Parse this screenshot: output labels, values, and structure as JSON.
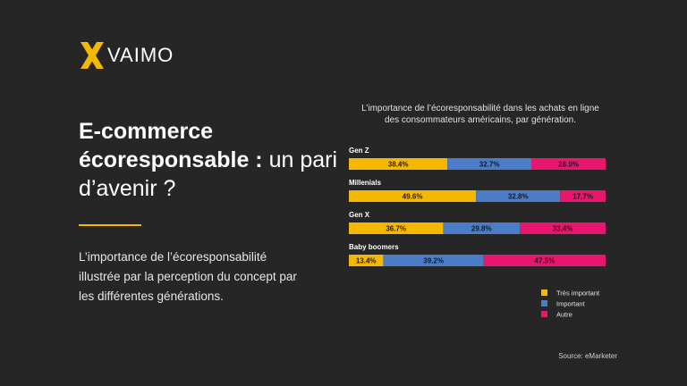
{
  "brand": {
    "name": "VAIMO",
    "accent": "#f5b800"
  },
  "headline": {
    "bold_part": "E-commerce écoresponsable :",
    "light_part": "un pari d’avenir ?"
  },
  "description": "L’importance de l’écoresponsabilité illustrée par la perception du concept par les différentes générations.",
  "source": "Source: eMarketer",
  "chart_data": {
    "type": "bar",
    "orientation": "horizontal",
    "stacked": true,
    "title": "L’importance de l’écoresponsabilité dans les achats en ligne des consommateurs américains, par génération.",
    "categories": [
      "Gen Z",
      "Millenials",
      "Gen X",
      "Baby boomers"
    ],
    "series": [
      {
        "name": "Très important",
        "color": "#f5b800",
        "values": [
          38.4,
          49.6,
          36.7,
          13.4
        ],
        "labels": [
          "38.4%",
          "49.6%",
          "36.7%",
          "13.4%"
        ]
      },
      {
        "name": "Important",
        "color": "#4a7cc7",
        "values": [
          32.7,
          32.8,
          29.8,
          39.2
        ],
        "labels": [
          "32.7%",
          "32.8%",
          "29.8%",
          "39.2%"
        ]
      },
      {
        "name": "Autre",
        "color": "#e8166c",
        "values": [
          28.9,
          17.7,
          33.4,
          47.5
        ],
        "labels": [
          "28.9%",
          "17.7%",
          "33.4%",
          "47.5%"
        ]
      }
    ],
    "xlim": [
      0,
      100
    ],
    "legend": "bottom-right",
    "grid": false
  }
}
